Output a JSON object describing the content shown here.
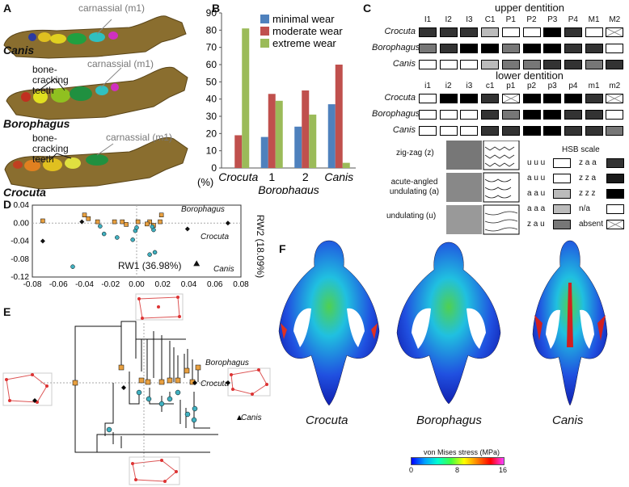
{
  "panels": {
    "A": {
      "label": "A",
      "jaws": [
        {
          "taxon": "Canis",
          "labels": [
            "carnassial (m1)"
          ]
        },
        {
          "taxon": "Borophagus",
          "labels": [
            "bone-cracking teeth",
            "carnassial (m1)"
          ]
        },
        {
          "taxon": "Crocuta",
          "labels": [
            "bone-cracking teeth",
            "carnassial (m1)"
          ]
        }
      ]
    },
    "B": {
      "label": "B"
    },
    "C": {
      "label": "C",
      "upper_title": "upper dentition",
      "lower_title": "lower dentition",
      "upper_teeth": [
        "I1",
        "I2",
        "I3",
        "C1",
        "P1",
        "P2",
        "P3",
        "P4",
        "M1",
        "M2"
      ],
      "lower_teeth": [
        "i1",
        "i2",
        "i3",
        "c1",
        "p1",
        "p2",
        "p3",
        "p4",
        "m1",
        "m2"
      ],
      "taxa": [
        "Crocuta",
        "Borophagus",
        "Canis"
      ],
      "upper_cells": [
        [
          "dark",
          "dark",
          "dark",
          "light",
          "white",
          "white",
          "black",
          "dark",
          "white",
          "absent"
        ],
        [
          "mid",
          "dark",
          "black",
          "black",
          "mid",
          "black",
          "black",
          "dark",
          "dark",
          "white"
        ],
        [
          "white",
          "white",
          "white",
          "light",
          "mid",
          "mid",
          "dark",
          "dark",
          "mid",
          "dark"
        ]
      ],
      "lower_cells": [
        [
          "white",
          "black",
          "black",
          "dark",
          "absent",
          "black",
          "black",
          "black",
          "dark",
          "absent"
        ],
        [
          "white",
          "white",
          "white",
          "dark",
          "mid",
          "black",
          "black",
          "dark",
          "dark",
          "white"
        ],
        [
          "white",
          "white",
          "white",
          "dark",
          "dark",
          "black",
          "black",
          "dark",
          "dark",
          "mid"
        ]
      ],
      "patterns": [
        {
          "label": "zig-zag (z)"
        },
        {
          "label": "acute-angled undulating (a)"
        },
        {
          "label": "undulating (u)"
        }
      ],
      "hsb_title": "HSB scale",
      "hsb_left": [
        {
          "code": "u u u",
          "shade": "white"
        },
        {
          "code": "a u u",
          "shade": "white"
        },
        {
          "code": "a a u",
          "shade": "light"
        },
        {
          "code": "a a a",
          "shade": "light"
        },
        {
          "code": "z a u",
          "shade": "mid"
        }
      ],
      "hsb_right": [
        {
          "code": "z a a",
          "shade": "dark"
        },
        {
          "code": "z z a",
          "shade": "darker"
        },
        {
          "code": "z z z",
          "shade": "black"
        },
        {
          "code": "n/a",
          "shade": "white"
        },
        {
          "code": "absent",
          "shade": "absent"
        }
      ]
    },
    "D": {
      "label": "D",
      "xlabel": "RW1 (36.98%)",
      "ylabel": "RW2 (18.09%)",
      "labels": [
        "Borophagus",
        "Crocuta",
        "Canis"
      ]
    },
    "E": {
      "label": "E",
      "labels": [
        "Borophagus",
        "Crocuta",
        "Canis"
      ]
    },
    "F": {
      "label": "F",
      "skulls": [
        "Crocuta",
        "Borophagus",
        "Canis"
      ],
      "scale_title": "von Mises stress (MPa)",
      "scale_ticks": [
        "0",
        "8",
        "16"
      ]
    }
  },
  "chart_data": [
    {
      "type": "bar",
      "panel": "B",
      "categories": [
        "Crocuta",
        "1",
        "2",
        "Canis"
      ],
      "category_sublabel": "Borophagus",
      "ylabel": "(%)",
      "ylim": [
        0,
        90
      ],
      "yticks": [
        0,
        10,
        20,
        30,
        40,
        50,
        60,
        70,
        80,
        90
      ],
      "legend": "top-right",
      "series": [
        {
          "name": "minimal wear",
          "color": "#4f81bd",
          "values": [
            0,
            18,
            24,
            37
          ]
        },
        {
          "name": "moderate wear",
          "color": "#c0504d",
          "values": [
            19,
            43,
            45,
            60
          ]
        },
        {
          "name": "extreme wear",
          "color": "#9bbb59",
          "values": [
            81,
            39,
            31,
            3
          ]
        }
      ]
    },
    {
      "type": "scatter",
      "panel": "D",
      "xlim": [
        -0.08,
        0.08
      ],
      "ylim": [
        -0.12,
        0.04
      ],
      "xticks": [
        -0.08,
        -0.06,
        -0.04,
        -0.02,
        0.0,
        0.02,
        0.04,
        0.06,
        0.08
      ],
      "yticks": [
        0.04,
        0.0,
        -0.04,
        -0.08,
        -0.12
      ],
      "xtick_labels": [
        "-0.08",
        "-0.06",
        "-0.04",
        "-0.02",
        "0.00",
        "0.02",
        "0.04",
        "0.06",
        "0.08"
      ],
      "ytick_labels": [
        "0.04",
        "0.00",
        "-0.04",
        "-0.08",
        "-0.12"
      ],
      "series": [
        {
          "name": "Borophagus",
          "marker": "square",
          "color": "#e8a040",
          "points": [
            [
              -0.072,
              0.005
            ],
            [
              -0.04,
              0.018
            ],
            [
              -0.037,
              0.01
            ],
            [
              -0.03,
              0.003
            ],
            [
              -0.017,
              0.003
            ],
            [
              -0.011,
              0.003
            ],
            [
              -0.008,
              -0.003
            ],
            [
              0.001,
              0.003
            ],
            [
              0.01,
              0.003
            ],
            [
              0.018,
              0.003
            ],
            [
              0.019,
              0.018
            ],
            [
              0.013,
              -0.005
            ],
            [
              0.008,
              -0.002
            ]
          ]
        },
        {
          "name": "Crocuta",
          "marker": "diamond",
          "color": "#111111",
          "points": [
            [
              -0.072,
              -0.04
            ],
            [
              -0.042,
              0.003
            ],
            [
              0.039,
              -0.013
            ],
            [
              0.07,
              0.0
            ]
          ]
        },
        {
          "name": "Canis",
          "marker": "circle",
          "color": "#40b0c0",
          "points": [
            [
              -0.049,
              -0.097
            ],
            [
              -0.028,
              -0.007
            ],
            [
              -0.025,
              -0.024
            ],
            [
              -0.015,
              -0.032
            ],
            [
              -0.003,
              -0.037
            ],
            [
              -0.001,
              -0.017
            ],
            [
              0.0,
              -0.01
            ],
            [
              0.01,
              -0.07
            ],
            [
              0.013,
              -0.015
            ],
            [
              0.014,
              -0.065
            ],
            [
              0.012,
              -0.008
            ]
          ]
        },
        {
          "name": "Canis-mean",
          "marker": "triangle",
          "color": "#111111",
          "points": [
            [
              0.046,
              -0.09
            ]
          ]
        }
      ]
    }
  ]
}
